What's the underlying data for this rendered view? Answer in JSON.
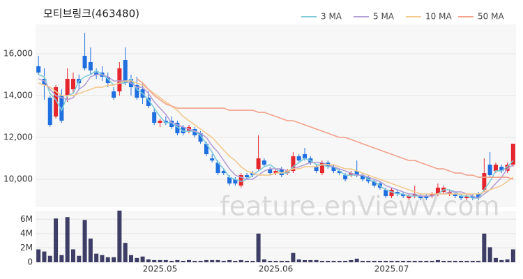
{
  "chart_data": [
    {
      "type": "candlestick",
      "title": "모티브링크(463480)",
      "watermark": "feature.enViewV.com",
      "up_color": "#e5262c",
      "down_color": "#1f6fe0",
      "open": [
        15400,
        14800,
        13900,
        13000,
        14000,
        14000,
        14300,
        14800,
        15900,
        15600,
        15100,
        15100,
        14900,
        14200,
        14200,
        15700,
        14800,
        14500,
        14300,
        13900,
        13200,
        12700,
        12800,
        12800,
        12700,
        12500,
        12300,
        12400,
        12200,
        11700,
        11000,
        10800,
        10400,
        10100,
        10000,
        9700,
        10200,
        10300,
        10500,
        10900,
        10500,
        10300,
        10500,
        10300,
        10400,
        11100,
        11200,
        11000,
        10600,
        10300,
        10800,
        10600,
        10400,
        10200,
        10200,
        10400,
        10200,
        10100,
        9900,
        9800,
        9500,
        9200,
        9400,
        9300,
        9100,
        9200,
        9200,
        9200,
        9200,
        9300,
        9400,
        9300,
        9300,
        9200,
        9100,
        9200,
        9300,
        9500,
        10700,
        10400,
        10600,
        10400,
        10700
      ],
      "high": [
        15900,
        15300,
        14000,
        14500,
        14300,
        15300,
        15100,
        15000,
        17000,
        16300,
        15300,
        15400,
        15100,
        14400,
        15600,
        16300,
        15000,
        14900,
        14600,
        14200,
        13400,
        12900,
        13000,
        13000,
        12800,
        12600,
        12600,
        12500,
        12300,
        11800,
        11200,
        10900,
        10500,
        10200,
        10100,
        10300,
        10300,
        10400,
        12100,
        11000,
        10600,
        10500,
        10600,
        10500,
        11300,
        11200,
        11500,
        11100,
        10700,
        10900,
        10900,
        10700,
        10500,
        10300,
        10400,
        10900,
        10300,
        10200,
        10000,
        9900,
        9600,
        9600,
        9500,
        9400,
        9300,
        9700,
        9300,
        9300,
        9400,
        9800,
        9700,
        9500,
        9400,
        9300,
        9300,
        9300,
        9400,
        11000,
        11300,
        10800,
        10700,
        10800,
        11700
      ],
      "low": [
        15000,
        13800,
        12500,
        12900,
        12700,
        13700,
        14100,
        14300,
        15200,
        15000,
        14800,
        14700,
        14400,
        13800,
        14000,
        14500,
        14000,
        13800,
        13600,
        13400,
        12600,
        12500,
        12600,
        12400,
        12100,
        12100,
        12200,
        12000,
        11700,
        11100,
        10800,
        10200,
        10200,
        9700,
        9700,
        9600,
        10000,
        10100,
        10400,
        10600,
        10200,
        10200,
        10100,
        10200,
        10300,
        10800,
        10900,
        10700,
        10300,
        10200,
        10500,
        10300,
        10200,
        9900,
        10100,
        10100,
        9900,
        9800,
        9600,
        9500,
        9100,
        9100,
        9200,
        9100,
        9000,
        9100,
        9000,
        9000,
        9100,
        9200,
        9300,
        9200,
        9100,
        9000,
        9000,
        9000,
        9000,
        9400,
        10100,
        10300,
        10300,
        10300,
        10600
      ],
      "close": [
        15100,
        14500,
        12600,
        14400,
        12800,
        14800,
        14800,
        14600,
        15300,
        15200,
        15000,
        14900,
        14600,
        13900,
        15300,
        14600,
        14400,
        13900,
        13900,
        13500,
        12700,
        12800,
        12700,
        12500,
        12200,
        12200,
        12500,
        12100,
        11800,
        11200,
        10900,
        10300,
        10300,
        9800,
        9800,
        10200,
        10100,
        10200,
        11000,
        10700,
        10300,
        10400,
        10200,
        10400,
        11100,
        10900,
        11000,
        10800,
        10400,
        10800,
        10600,
        10400,
        10300,
        10000,
        10300,
        10200,
        10000,
        9900,
        9700,
        9600,
        9200,
        9500,
        9300,
        9200,
        9200,
        9300,
        9100,
        9100,
        9300,
        9600,
        9600,
        9400,
        9200,
        9100,
        9200,
        9100,
        9100,
        10300,
        10200,
        10700,
        10400,
        10700,
        11700
      ],
      "series": [
        {
          "name": "3 MA",
          "color": "#7fcbd9",
          "values": [
            15000,
            14900,
            14100,
            13800,
            13300,
            14000,
            14100,
            14700,
            14900,
            15000,
            15200,
            15000,
            14800,
            14500,
            14600,
            14600,
            14800,
            14300,
            14100,
            13800,
            13400,
            13000,
            12700,
            12700,
            12500,
            12300,
            12300,
            12300,
            12100,
            11700,
            11300,
            10800,
            10500,
            10100,
            10000,
            9900,
            10000,
            10200,
            10400,
            10600,
            10700,
            10500,
            10300,
            10300,
            10600,
            10800,
            11000,
            10900,
            10700,
            10700,
            10600,
            10600,
            10400,
            10200,
            10200,
            10200,
            10200,
            10000,
            9900,
            9700,
            9500,
            9400,
            9300,
            9300,
            9200,
            9200,
            9200,
            9200,
            9200,
            9300,
            9500,
            9500,
            9400,
            9200,
            9200,
            9100,
            9100,
            9500,
            9900,
            10400,
            10400,
            10600,
            10900
          ]
        },
        {
          "name": "5 MA",
          "color": "#b4a0d6",
          "values": [
            14800,
            14700,
            14300,
            14000,
            13900,
            13800,
            13900,
            14300,
            14500,
            14900,
            15000,
            15000,
            14900,
            14700,
            14700,
            14700,
            14600,
            14400,
            14400,
            14100,
            13700,
            13400,
            13100,
            12700,
            12600,
            12500,
            12400,
            12300,
            12200,
            12000,
            11600,
            11300,
            10900,
            10500,
            10200,
            10100,
            10000,
            10000,
            10200,
            10400,
            10500,
            10500,
            10500,
            10400,
            10500,
            10600,
            10700,
            10800,
            10800,
            10800,
            10700,
            10600,
            10500,
            10400,
            10300,
            10200,
            10200,
            10100,
            10000,
            9900,
            9700,
            9600,
            9500,
            9400,
            9300,
            9300,
            9200,
            9200,
            9200,
            9300,
            9300,
            9400,
            9400,
            9400,
            9300,
            9200,
            9100,
            9300,
            9500,
            9800,
            10100,
            10500,
            10700
          ]
        },
        {
          "name": "10 MA",
          "color": "#f3c98e",
          "values": [
            14600,
            14500,
            14400,
            14200,
            14000,
            14000,
            14000,
            14100,
            14200,
            14300,
            14400,
            14400,
            14500,
            14500,
            14600,
            14700,
            14700,
            14600,
            14500,
            14300,
            14100,
            13900,
            13700,
            13500,
            13300,
            13000,
            12800,
            12600,
            12400,
            12200,
            12000,
            11700,
            11400,
            11100,
            10900,
            10600,
            10400,
            10300,
            10200,
            10200,
            10200,
            10300,
            10300,
            10400,
            10500,
            10500,
            10600,
            10600,
            10600,
            10700,
            10700,
            10700,
            10600,
            10500,
            10500,
            10400,
            10300,
            10200,
            10100,
            10000,
            9900,
            9800,
            9700,
            9600,
            9500,
            9400,
            9300,
            9300,
            9300,
            9300,
            9300,
            9300,
            9300,
            9300,
            9300,
            9300,
            9300,
            9400,
            9500,
            9600,
            9700,
            9900,
            10100
          ]
        },
        {
          "name": "50 MA",
          "color": "#f2a28c",
          "values": [
            null,
            null,
            null,
            null,
            null,
            null,
            null,
            null,
            null,
            null,
            null,
            null,
            null,
            null,
            null,
            null,
            null,
            14800,
            14600,
            14300,
            14000,
            13800,
            13600,
            13500,
            13400,
            13400,
            13400,
            13400,
            13400,
            13400,
            13400,
            13400,
            13400,
            13300,
            13300,
            13300,
            13300,
            13300,
            13200,
            13200,
            13100,
            13000,
            12900,
            12800,
            12800,
            12700,
            12600,
            12500,
            12400,
            12300,
            12200,
            12100,
            12000,
            12000,
            11900,
            11800,
            11700,
            11600,
            11500,
            11400,
            11300,
            11200,
            11100,
            11000,
            10900,
            10900,
            10800,
            10700,
            10600,
            10500,
            10500,
            10400,
            10300,
            10300,
            10200,
            10200,
            10100,
            10100,
            10100,
            10100,
            10100,
            10100,
            10000
          ]
        }
      ],
      "ylim": [
        8670,
        17400
      ],
      "yticks": [
        {
          "value": 10000,
          "label": "10,000"
        },
        {
          "value": 12000,
          "label": "12,000"
        },
        {
          "value": 14000,
          "label": "14,000"
        },
        {
          "value": 16000,
          "label": "16,000"
        }
      ],
      "grid": true,
      "legend": "top-right"
    },
    {
      "type": "bar",
      "color": "#3d3d66",
      "categories": [
        null,
        null,
        null,
        null,
        null,
        null,
        null,
        null,
        null,
        null,
        null,
        null,
        null,
        null,
        null,
        null,
        null,
        null,
        null,
        null,
        null,
        "2025.05",
        null,
        null,
        null,
        null,
        null,
        null,
        null,
        null,
        null,
        null,
        null,
        null,
        null,
        null,
        null,
        null,
        null,
        null,
        null,
        "2025.06",
        null,
        null,
        null,
        null,
        null,
        null,
        null,
        null,
        null,
        null,
        null,
        null,
        null,
        null,
        null,
        null,
        null,
        null,
        null,
        "2025.07",
        null,
        null,
        null,
        null,
        null,
        null,
        null,
        null,
        null,
        null,
        null,
        null,
        null,
        null,
        null,
        null,
        null,
        null,
        null,
        null,
        null
      ],
      "values": [
        1800000,
        1500000,
        900000,
        6100000,
        1000000,
        6300000,
        1800000,
        900000,
        5900000,
        3300000,
        1200000,
        1000000,
        700000,
        700000,
        7200000,
        2700000,
        1000000,
        600000,
        800000,
        400000,
        300000,
        300000,
        300000,
        200000,
        300000,
        200000,
        300000,
        200000,
        200000,
        300000,
        300000,
        300000,
        200000,
        300000,
        200000,
        300000,
        200000,
        200000,
        4000000,
        400000,
        200000,
        200000,
        200000,
        200000,
        1300000,
        400000,
        300000,
        300000,
        300000,
        200000,
        200000,
        200000,
        200000,
        200000,
        300000,
        500000,
        200000,
        200000,
        200000,
        200000,
        200000,
        200000,
        200000,
        200000,
        200000,
        200000,
        200000,
        200000,
        200000,
        300000,
        200000,
        200000,
        200000,
        200000,
        200000,
        200000,
        200000,
        4000000,
        2100000,
        600000,
        300000,
        400000,
        1800000
      ],
      "ylim": [
        0,
        7100000
      ],
      "yticks": [
        0,
        {
          "value": 2000000,
          "label": "2M"
        },
        {
          "value": 4000000,
          "label": "4M"
        },
        {
          "value": 6000000,
          "label": "6M"
        }
      ],
      "grid": true
    }
  ]
}
